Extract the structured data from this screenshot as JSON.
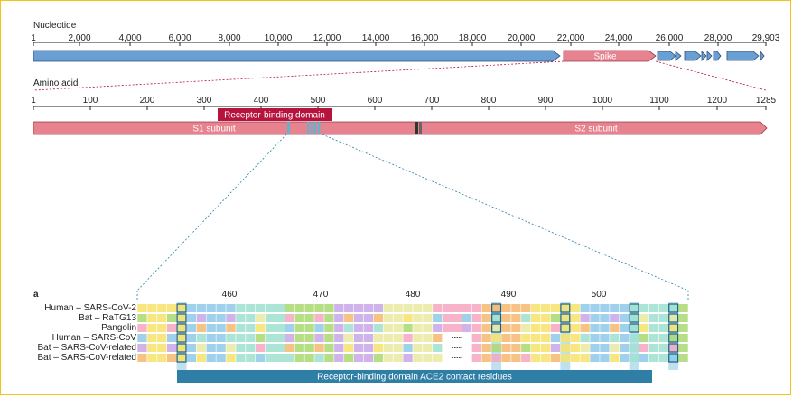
{
  "nucleotide": {
    "label": "Nucleotide",
    "ticks": [
      "1",
      "2,000",
      "4,000",
      "6,000",
      "8,000",
      "10,000",
      "12,000",
      "14,000",
      "16,000",
      "18,000",
      "20,000",
      "22,000",
      "24,000",
      "26,000",
      "28,000",
      "29,903"
    ],
    "spike_label": "Spike",
    "gene_color": "#6a9fd4",
    "spike_color": "#e7828f"
  },
  "amino_acid": {
    "label": "Amino acid",
    "ticks": [
      "1",
      "100",
      "200",
      "300",
      "400",
      "500",
      "600",
      "700",
      "800",
      "900",
      "1000",
      "1100",
      "1200",
      "1285"
    ],
    "rbd_label": "Receptor-binding domain",
    "rbd_color": "#b7143d",
    "s1_label": "S1 subunit",
    "s2_label": "S2 subunit"
  },
  "alignment": {
    "panel_label": "a",
    "positions": [
      "460",
      "470",
      "480",
      "490",
      "500"
    ],
    "sequences": [
      "Human – SARS-CoV-2",
      "Bat – RaTG13",
      "Pangolin",
      "Human – SARS-CoV",
      "Bat – SARS-CoV-related",
      "Bat – SARS-CoV-related"
    ],
    "contact_label": "Receptor-binding domain ACE2 contact residues",
    "contact_color": "#2e7ea6"
  }
}
